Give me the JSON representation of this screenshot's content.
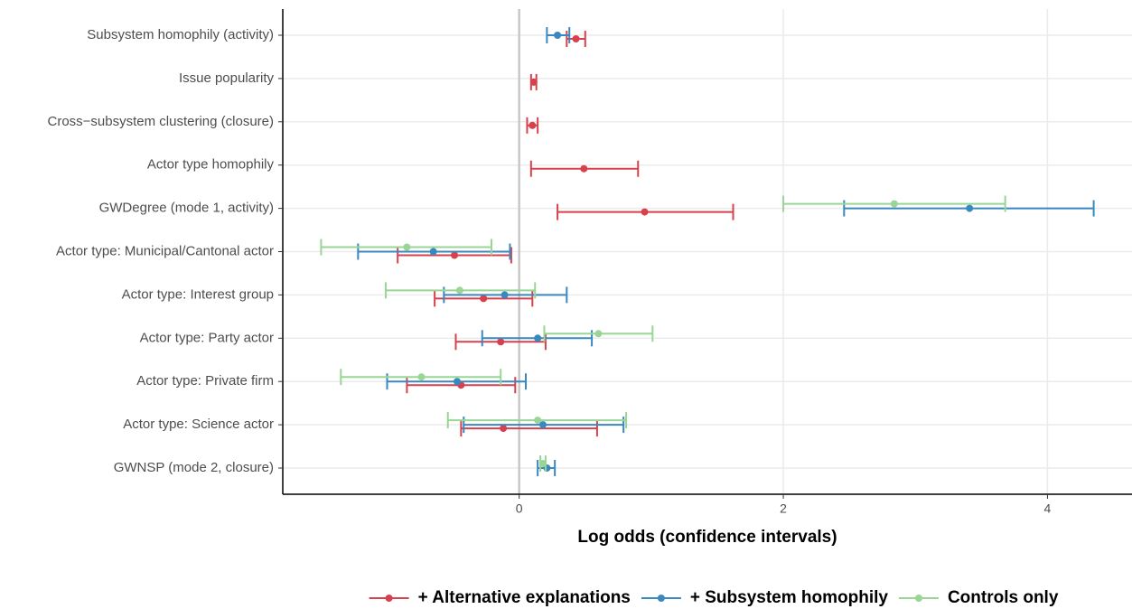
{
  "chart_data": {
    "type": "errorbar",
    "x_label": "Log odds (confidence intervals)",
    "categories": [
      "Subsystem homophily (activity)",
      "Issue popularity",
      "Cross−subsystem clustering (closure)",
      "Actor type homophily",
      "GWDegree (mode 1, activity)",
      "Actor type: Municipal/Cantonal actor",
      "Actor type: Interest group",
      "Actor type: Party actor",
      "Actor type: Private firm",
      "Actor type: Science actor",
      "GWNSP (mode 2, closure)"
    ],
    "series": [
      {
        "name": "+ Alternative explanations",
        "color": "#d7414e",
        "values": [
          0.43,
          0.11,
          0.1,
          0.49,
          0.95,
          -0.49,
          -0.27,
          -0.14,
          -0.44,
          -0.12,
          null
        ],
        "lower": [
          0.36,
          0.09,
          0.06,
          0.09,
          0.29,
          -0.92,
          -0.64,
          -0.48,
          -0.85,
          -0.44,
          null
        ],
        "upper": [
          0.5,
          0.13,
          0.14,
          0.9,
          1.62,
          -0.06,
          0.1,
          0.2,
          -0.03,
          0.59,
          null
        ]
      },
      {
        "name": "+ Subsystem homophily",
        "color": "#3a88c0",
        "values": [
          0.29,
          null,
          null,
          null,
          3.41,
          -0.65,
          -0.11,
          0.14,
          -0.47,
          0.18,
          0.21
        ],
        "lower": [
          0.21,
          null,
          null,
          null,
          2.46,
          -1.22,
          -0.57,
          -0.28,
          -1.0,
          -0.42,
          0.14
        ],
        "upper": [
          0.38,
          null,
          null,
          null,
          4.35,
          -0.07,
          0.36,
          0.55,
          0.05,
          0.79,
          0.27
        ]
      },
      {
        "name": "Controls only",
        "color": "#99d594",
        "values": [
          null,
          null,
          null,
          null,
          2.84,
          -0.85,
          -0.45,
          0.6,
          -0.74,
          0.14,
          0.18
        ],
        "lower": [
          null,
          null,
          null,
          null,
          2.0,
          -1.5,
          -1.01,
          0.19,
          -1.35,
          -0.54,
          0.16
        ],
        "upper": [
          null,
          null,
          null,
          null,
          3.68,
          -0.21,
          0.12,
          1.01,
          -0.14,
          0.81,
          0.2
        ]
      }
    ],
    "xlim": [
      -1.79,
      4.64
    ],
    "xticks": [
      0,
      2,
      4
    ],
    "reference_line": 0,
    "grid": true,
    "legend": "bottom"
  }
}
